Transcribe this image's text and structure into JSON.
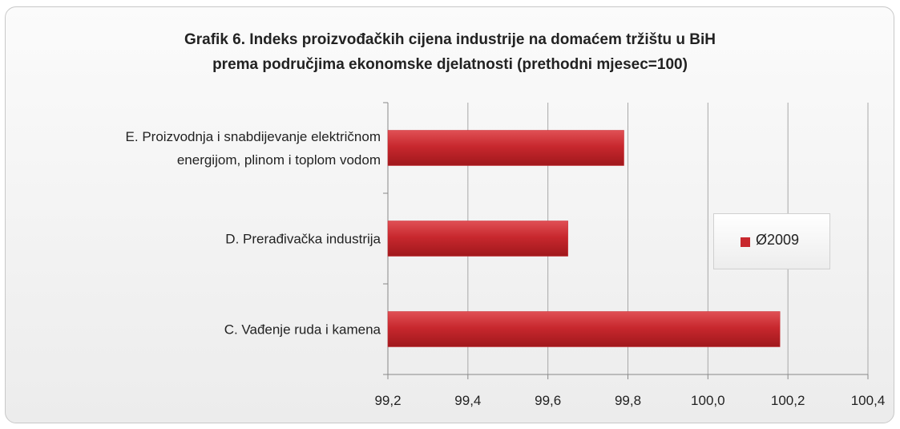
{
  "chart_data": {
    "type": "bar",
    "orientation": "horizontal",
    "title": "Grafik 6. Indeks proizvođačkih cijena industrije na domaćem tržištu u BiH\nprema područjima ekonomske djelatnosti (prethodni mjesec=100)",
    "categories": [
      "E. Proizvodnja i snabdijevanje električnom\nenergijom, plinom i toplom vodom",
      "D. Prerađivačka industrija",
      "C. Vađenje ruda i kamena"
    ],
    "series": [
      {
        "name": "Ø2009",
        "color": "#c8282e",
        "values": [
          99.79,
          99.65,
          100.18
        ]
      }
    ],
    "xlim": [
      99.2,
      100.4
    ],
    "xticks": [
      {
        "value": 99.2,
        "label": "99,2"
      },
      {
        "value": 99.4,
        "label": "99,4"
      },
      {
        "value": 99.6,
        "label": "99,6"
      },
      {
        "value": 99.8,
        "label": "99,8"
      },
      {
        "value": 100.0,
        "label": "100,0"
      },
      {
        "value": 100.2,
        "label": "100,2"
      },
      {
        "value": 100.4,
        "label": "100,4"
      }
    ],
    "grid": true,
    "legend": "right"
  }
}
